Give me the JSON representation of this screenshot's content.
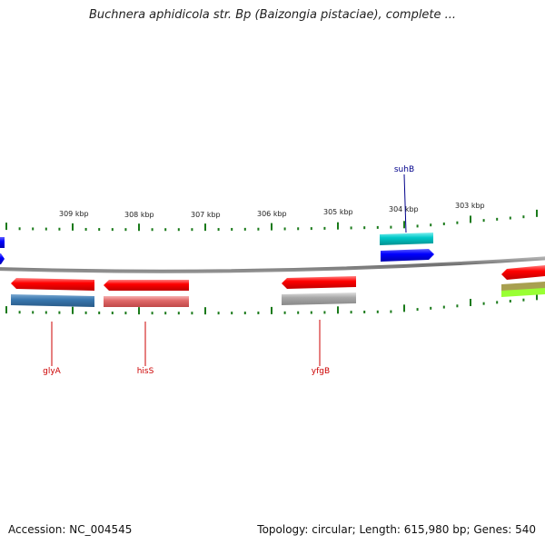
{
  "title": "Buchnera aphidicola str. Bp (Baizongia pistaciae), complete ...",
  "footer": {
    "accession": "Accession: NC_004545",
    "stats": "Topology: circular; Length: 615,980 bp; Genes: 540"
  },
  "colors": {
    "backbone": "#808080",
    "tick": "#1a7a1a",
    "red_gene": "#ff0000",
    "blue_gene": "#0000ff",
    "cyan_gene": "#00c8c8",
    "steelblue_gene": "#3a78b0",
    "pink_gene": "#e06a6a",
    "gray_gene": "#a8a8a8",
    "olive_gene": "#a8a050",
    "lime_gene": "#99ff33",
    "gene_label_red": "#cc0000",
    "gene_label_blue": "#00008b"
  },
  "scale": {
    "unit": "kbp",
    "labels": [
      "309 kbp",
      "308 kbp",
      "307 kbp",
      "306 kbp",
      "305 kbp",
      "304 kbp",
      "303 kbp"
    ]
  },
  "gene_labels": [
    {
      "name": "suhB",
      "color": "blue"
    },
    {
      "name": "glyA",
      "color": "red"
    },
    {
      "name": "hisS",
      "color": "red"
    },
    {
      "name": "yfgB",
      "color": "red"
    }
  ]
}
